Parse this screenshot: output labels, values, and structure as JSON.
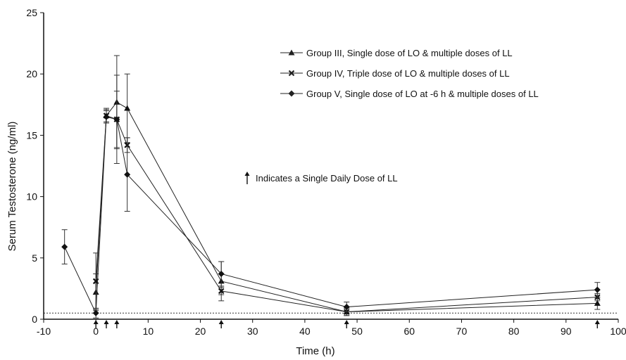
{
  "chart_data": {
    "type": "line",
    "xlabel": "Time (h)",
    "ylabel": "Serum Testosterone (ng/ml)",
    "xlim": [
      -10,
      100
    ],
    "ylim": [
      0,
      25
    ],
    "xticks": [
      -10,
      0,
      10,
      20,
      30,
      40,
      50,
      60,
      70,
      80,
      90,
      100
    ],
    "yticks": [
      0,
      5,
      10,
      15,
      20,
      25
    ],
    "xtick_labels": [
      "-10",
      "0",
      "10",
      "20",
      "30",
      "40",
      "50",
      "60",
      "70",
      "80",
      "90",
      "100"
    ],
    "ytick_labels": [
      "0",
      "5",
      "10",
      "15",
      "20",
      "25"
    ],
    "reference_line": {
      "y": 0.5,
      "style": "dotted"
    },
    "dose_arrows_x": [
      0,
      2,
      4,
      24,
      48,
      96
    ],
    "annotation": {
      "text": "Indicates a Single Daily Dose of LL",
      "x": 30,
      "y": 14.3
    },
    "series": [
      {
        "name": "Group III, Single dose of LO & multiple doses of LL",
        "marker": "triangle",
        "x": [
          0,
          2,
          4,
          6,
          24,
          48,
          96
        ],
        "y": [
          2.2,
          16.6,
          17.7,
          17.2,
          3.1,
          0.6,
          1.3
        ],
        "err": [
          1.5,
          0.6,
          3.8,
          2.8,
          1.6,
          0.3,
          0.5
        ]
      },
      {
        "name": "Group IV, Triple dose of LO & multiple doses of LL",
        "marker": "x",
        "x": [
          0,
          2,
          4,
          6,
          24,
          48,
          96
        ],
        "y": [
          3.1,
          16.6,
          16.3,
          14.2,
          2.3,
          0.6,
          1.8
        ],
        "err": [
          2.3,
          0.5,
          2.3,
          0.6,
          0.3,
          0.3,
          0.3
        ]
      },
      {
        "name": "Group V, Single dose of LO at -6 h & multiple doses of LL",
        "marker": "diamond",
        "x": [
          -6,
          0,
          2,
          4,
          6,
          24,
          48,
          96
        ],
        "y": [
          5.9,
          0.5,
          16.5,
          16.3,
          11.8,
          3.7,
          1.0,
          2.4
        ],
        "err": [
          1.4,
          0.4,
          0.5,
          3.6,
          3.0,
          1.0,
          0.4,
          0.6
        ]
      }
    ]
  }
}
